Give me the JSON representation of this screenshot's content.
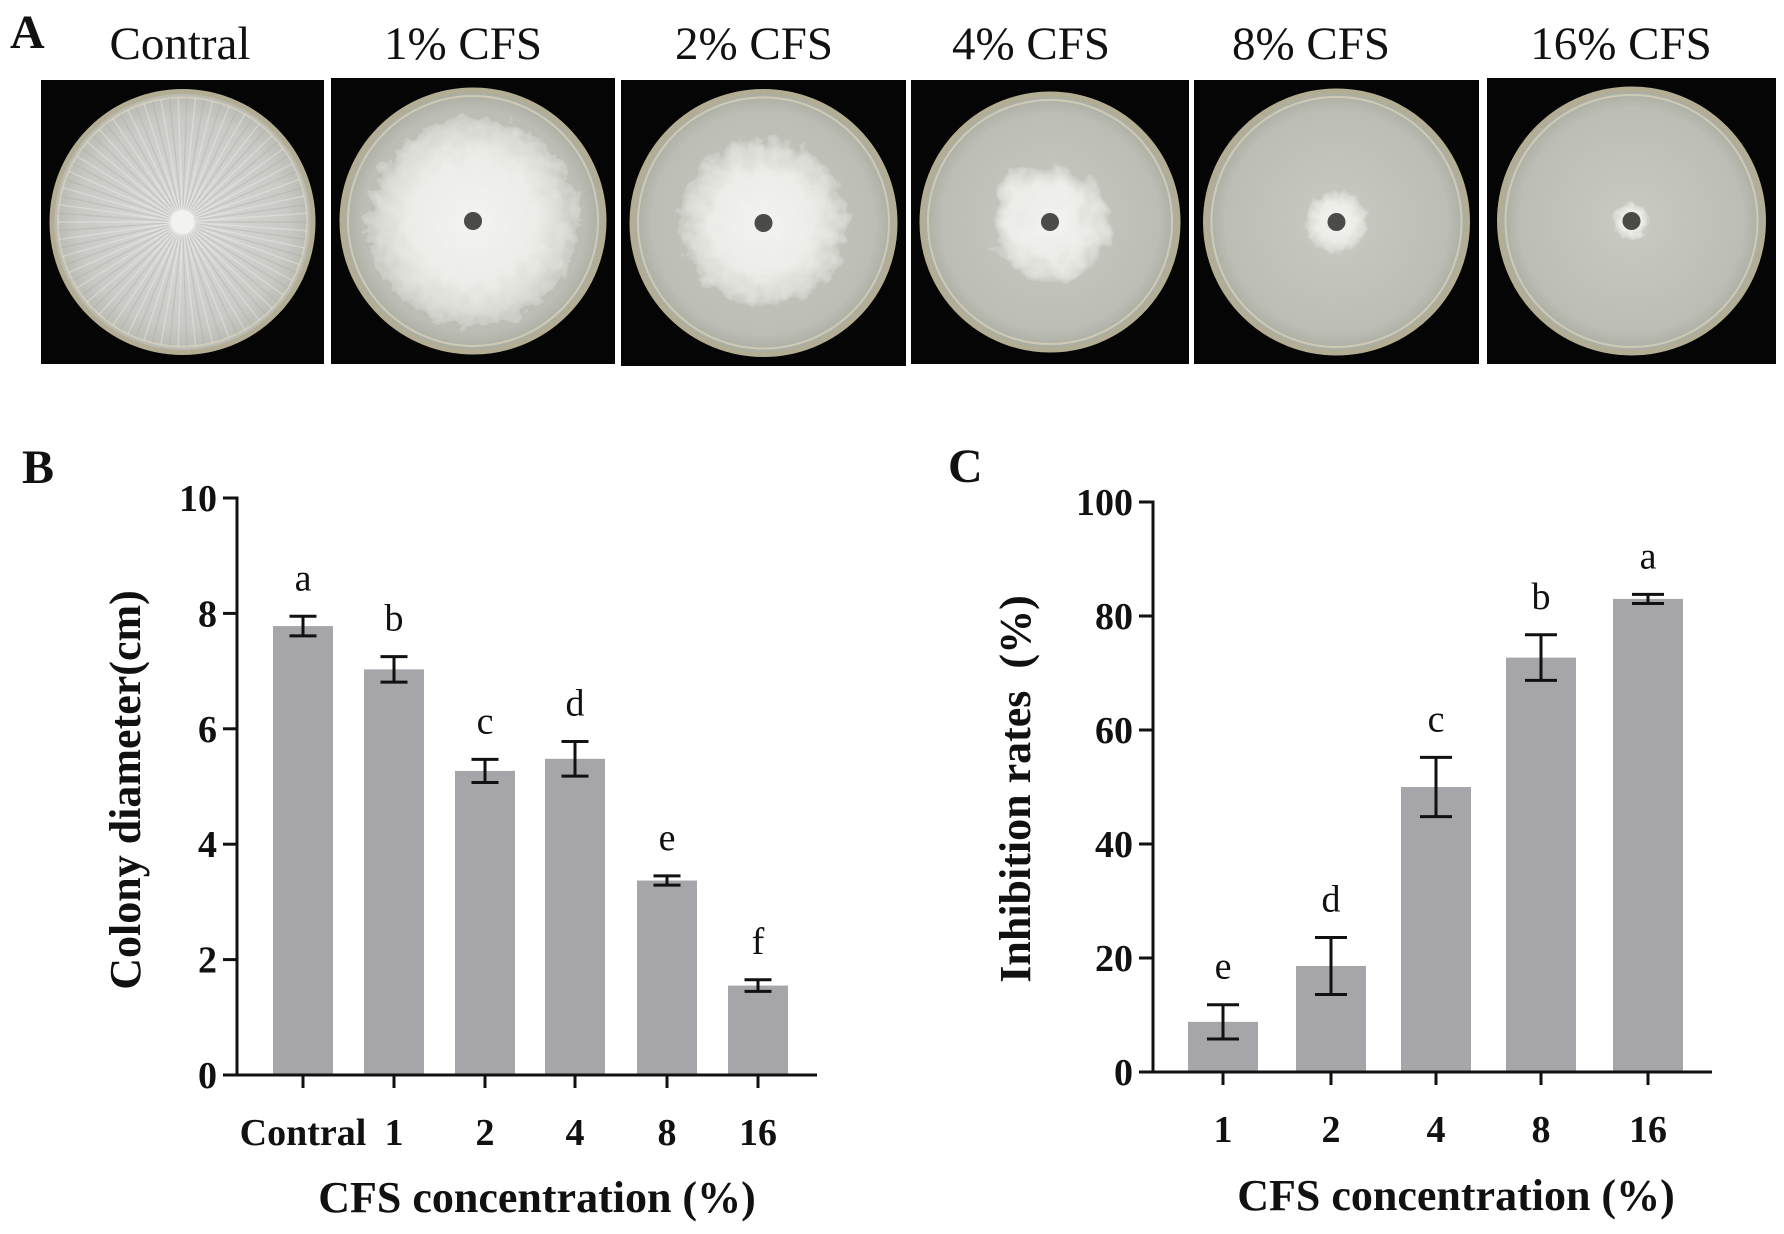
{
  "panels": {
    "a": "A",
    "b": "B",
    "c": "C"
  },
  "photos": [
    {
      "label": "Contral"
    },
    {
      "label": "1% CFS"
    },
    {
      "label": "2% CFS"
    },
    {
      "label": "4% CFS"
    },
    {
      "label": "8% CFS"
    },
    {
      "label": "16% CFS"
    }
  ],
  "chart_data": [
    {
      "panel": "B",
      "type": "bar",
      "title": "",
      "categories": [
        "Contral",
        "1",
        "2",
        "4",
        "8",
        "16"
      ],
      "values": [
        7.78,
        7.03,
        5.27,
        5.48,
        3.37,
        1.55
      ],
      "errors": [
        0.17,
        0.22,
        0.2,
        0.3,
        0.08,
        0.1
      ],
      "significance_letters": [
        "a",
        "b",
        "c",
        "d",
        "e",
        "f"
      ],
      "xlabel": "CFS concentration (%)",
      "ylabel": "Colony diameter(cm)",
      "ylim": [
        0,
        10
      ],
      "yticks": [
        "0",
        "2",
        "4",
        "6",
        "8",
        "10"
      ],
      "grid": false,
      "legend": "none",
      "bar_color": "#a5a5aa"
    },
    {
      "panel": "C",
      "type": "bar",
      "title": "",
      "categories": [
        "1",
        "2",
        "4",
        "8",
        "16"
      ],
      "values": [
        8.8,
        18.6,
        50.0,
        72.7,
        83.0
      ],
      "errors": [
        3.0,
        5.0,
        5.2,
        4.0,
        0.8
      ],
      "significance_letters": [
        "e",
        "d",
        "c",
        "b",
        "a"
      ],
      "xlabel": "CFS concentration (%)",
      "ylabel": "Inhibition rates  (%)",
      "ylim": [
        0,
        100
      ],
      "yticks": [
        "0",
        "20",
        "40",
        "60",
        "80",
        "100"
      ],
      "grid": false,
      "legend": "none",
      "bar_color": "#a5a5aa"
    }
  ]
}
